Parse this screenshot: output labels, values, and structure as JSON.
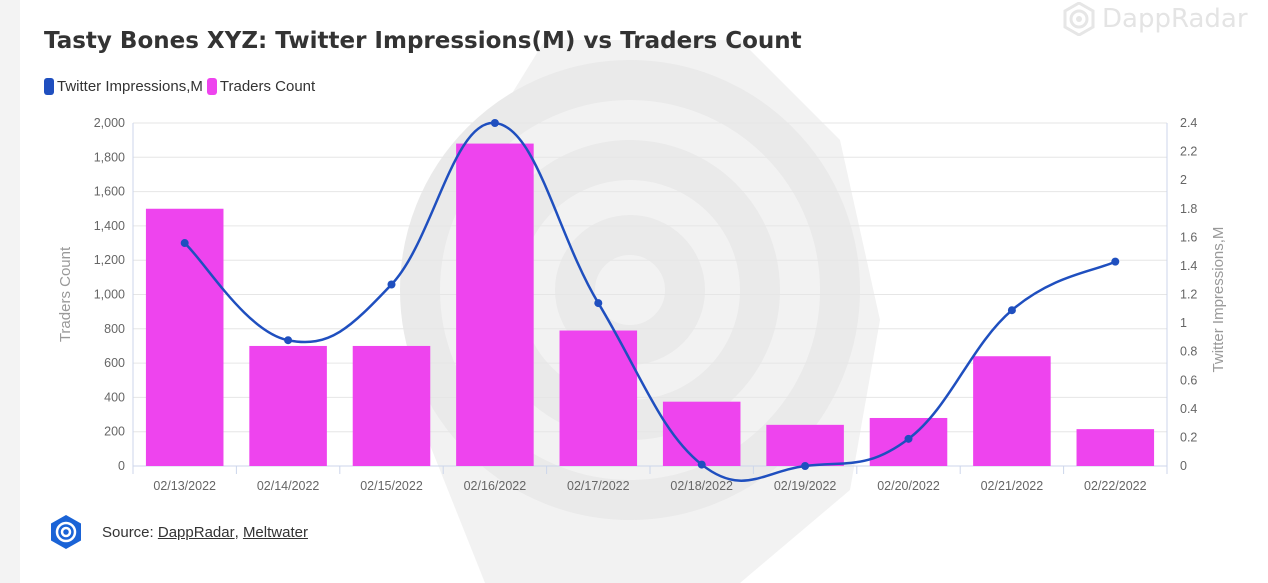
{
  "brand": {
    "name": "DappRadar"
  },
  "chart_data": {
    "type": "bar",
    "title": "Tasty Bones XYZ: Twitter Impressions(M) vs Traders Count",
    "categories": [
      "02/13/2022",
      "02/14/2022",
      "02/15/2022",
      "02/16/2022",
      "02/17/2022",
      "02/18/2022",
      "02/19/2022",
      "02/20/2022",
      "02/21/2022",
      "02/22/2022"
    ],
    "series": [
      {
        "name": "Traders Count",
        "type": "bar",
        "axis": "left",
        "color": "#ee44ee",
        "values": [
          1500,
          700,
          700,
          1880,
          790,
          375,
          240,
          280,
          640,
          215
        ]
      },
      {
        "name": "Twitter Impressions,M",
        "type": "line",
        "axis": "right",
        "color": "#1f4fbf",
        "values": [
          1.56,
          0.88,
          1.27,
          2.4,
          1.14,
          0.01,
          0.0,
          0.19,
          1.09,
          1.43
        ]
      }
    ],
    "ylabel": "Traders Count",
    "ylim": [
      0,
      2000
    ],
    "yticks": [
      "0",
      "200",
      "400",
      "600",
      "800",
      "1,000",
      "1,200",
      "1,400",
      "1,600",
      "1,800",
      "2,000"
    ],
    "y2label": "Twitter Impressions,M",
    "y2lim": [
      0,
      2.4
    ],
    "y2ticks": [
      "0",
      "0.2",
      "0.4",
      "0.6",
      "0.8",
      "1",
      "1.2",
      "1.4",
      "1.6",
      "1.8",
      "2",
      "2.2",
      "2.4"
    ],
    "grid": true,
    "legend_position": "top-left"
  },
  "source": {
    "prefix": "Source: ",
    "links": [
      "DappRadar",
      "Meltwater"
    ],
    "separator": ", "
  }
}
